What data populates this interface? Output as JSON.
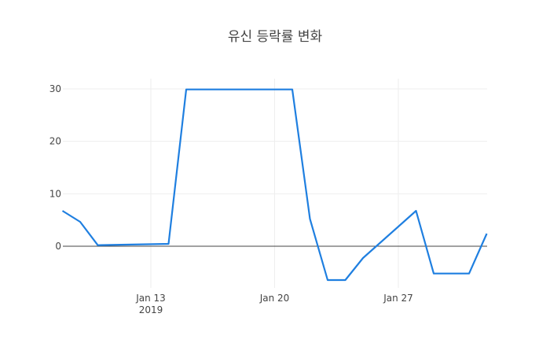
{
  "chart_data": {
    "type": "line",
    "title": "유신 등락률 변화",
    "xlabel": "",
    "ylabel": "",
    "x": [
      "2019-01-08",
      "2019-01-09",
      "2019-01-10",
      "2019-01-14",
      "2019-01-15",
      "2019-01-16",
      "2019-01-17",
      "2019-01-18",
      "2019-01-21",
      "2019-01-22",
      "2019-01-23",
      "2019-01-24",
      "2019-01-25",
      "2019-01-28",
      "2019-01-29",
      "2019-01-30",
      "2019-01-31",
      "2019-02-01"
    ],
    "series": [
      {
        "name": "등락률",
        "color": "#1f7fe0",
        "values": [
          6.75,
          4.65,
          0.2,
          0.45,
          29.9,
          29.9,
          29.9,
          29.9,
          29.9,
          5.2,
          -6.45,
          -6.45,
          -2.25,
          6.75,
          -5.2,
          -5.2,
          -5.2,
          2.4
        ]
      }
    ],
    "x_ticks": [
      {
        "label": "Jan 13",
        "sublabel": "2019"
      },
      {
        "label": "Jan 20",
        "sublabel": ""
      },
      {
        "label": "Jan 27",
        "sublabel": ""
      }
    ],
    "y_ticks": [
      "0",
      "10",
      "20",
      "30"
    ],
    "ylim": [
      -7.5,
      32
    ],
    "grid": true,
    "legend": "none"
  }
}
